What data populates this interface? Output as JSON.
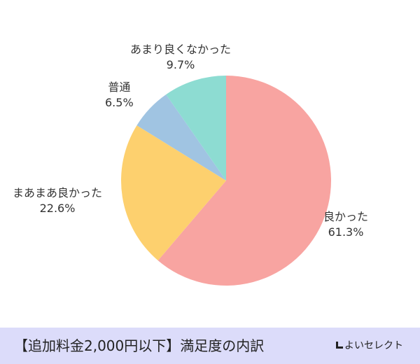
{
  "chart_data": {
    "type": "pie",
    "categories": [
      "良かった",
      "まあまあ良かった",
      "普通",
      "あまり良くなかった"
    ],
    "values": [
      61.3,
      22.6,
      6.5,
      9.7
    ],
    "value_labels": [
      "61.3%",
      "22.6%",
      "6.5%",
      "9.7%"
    ],
    "colors": [
      "#f8a4a1",
      "#fdd06e",
      "#a0c4e2",
      "#8ddcd2"
    ],
    "start_angle_deg": 0,
    "direction": "clockwise"
  },
  "footer": {
    "title": "【追加料金2,000円以下】満足度の内訳",
    "brand": "よいセレクト",
    "background": "#dcdcfa"
  }
}
